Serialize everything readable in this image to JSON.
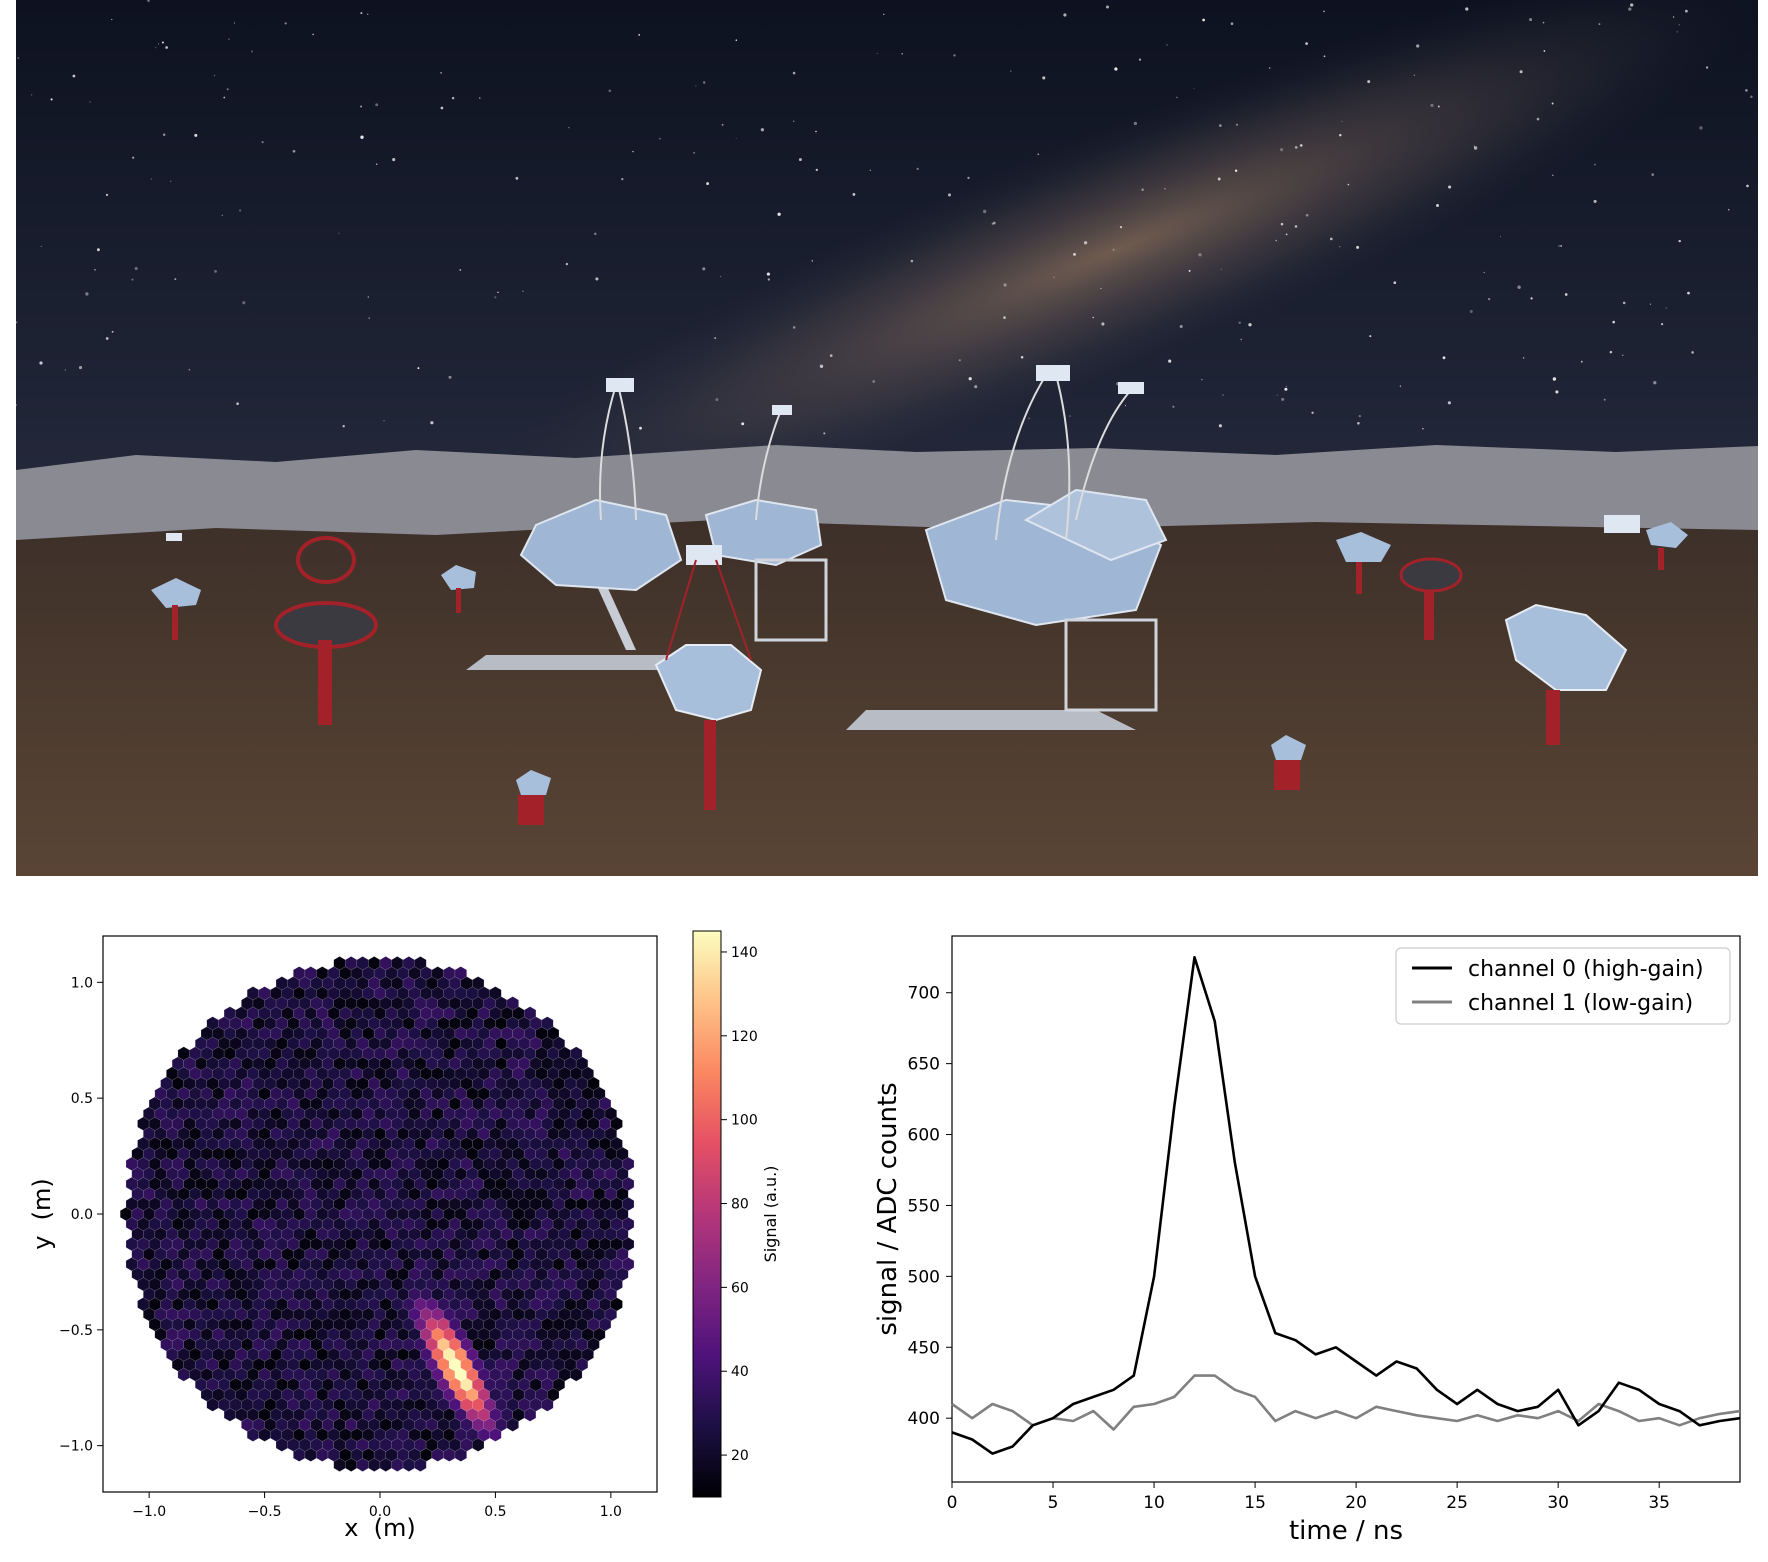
{
  "photo": {
    "description": "Night-sky rendering of a Cherenkov telescope array on a desert plateau under the Milky Way",
    "colors": {
      "sky_top": "#0d1220",
      "sky_mid": "#2a2c3a",
      "ground": "#4a3a30",
      "mirror": "#9fb6d4",
      "structure_red": "#a32128"
    }
  },
  "chart_data": [
    {
      "type": "heatmap",
      "title": "",
      "xlabel": "x  (m)",
      "ylabel": "y  (m)",
      "xlim": [
        -1.2,
        1.2
      ],
      "ylim": [
        -1.2,
        1.2
      ],
      "xticks": [
        -1.0,
        -0.5,
        0.0,
        0.5,
        1.0
      ],
      "xtick_labels": [
        "−1.0",
        "−0.5",
        "0.0",
        "0.5",
        "1.0"
      ],
      "yticks": [
        -1.0,
        -0.5,
        0.0,
        0.5,
        1.0
      ],
      "ytick_labels": [
        "−1.0",
        "−0.5",
        "0.0",
        "0.5",
        "1.0"
      ],
      "camera_radius": 1.1,
      "pixel_pitch": 0.05,
      "noise_range": [
        12,
        35
      ],
      "shower": {
        "center": [
          0.33,
          -0.66
        ],
        "peak_signal": 143,
        "major_sigma": 0.2,
        "minor_sigma": 0.055,
        "angle_deg": -62
      },
      "colorbar": {
        "label": "Signal (a.u.)",
        "range": [
          10,
          145
        ],
        "ticks": [
          20,
          40,
          60,
          80,
          100,
          120,
          140
        ],
        "colormap": "magma",
        "stops": [
          "#000004",
          "#1c1044",
          "#4f127b",
          "#812581",
          "#b5367a",
          "#e55064",
          "#fb8761",
          "#fec287",
          "#fcfdbf"
        ]
      },
      "grid": false
    },
    {
      "type": "line",
      "title": "",
      "xlabel": "time / ns",
      "ylabel": "signal / ADC counts",
      "xlim": [
        0,
        39
      ],
      "ylim": [
        355,
        740
      ],
      "xticks": [
        0,
        5,
        10,
        15,
        20,
        25,
        30,
        35
      ],
      "yticks": [
        400,
        450,
        500,
        550,
        600,
        650,
        700
      ],
      "grid": false,
      "legend_position": "top-right",
      "x": [
        0,
        1,
        2,
        3,
        4,
        5,
        6,
        7,
        8,
        9,
        10,
        11,
        12,
        13,
        14,
        15,
        16,
        17,
        18,
        19,
        20,
        21,
        22,
        23,
        24,
        25,
        26,
        27,
        28,
        29,
        30,
        31,
        32,
        33,
        34,
        35,
        36,
        37,
        38,
        39
      ],
      "series": [
        {
          "name": "channel 0 (high-gain)",
          "color": "#000000",
          "values": [
            390,
            385,
            375,
            380,
            395,
            400,
            410,
            415,
            420,
            430,
            500,
            620,
            725,
            680,
            580,
            500,
            460,
            455,
            445,
            450,
            440,
            430,
            440,
            435,
            420,
            410,
            420,
            410,
            405,
            408,
            420,
            395,
            405,
            425,
            420,
            410,
            405,
            395,
            398,
            400
          ]
        },
        {
          "name": "channel 1 (low-gain)",
          "color": "#808080",
          "values": [
            410,
            400,
            410,
            405,
            395,
            400,
            398,
            405,
            392,
            408,
            410,
            415,
            430,
            430,
            420,
            415,
            398,
            405,
            400,
            405,
            400,
            408,
            405,
            402,
            400,
            398,
            402,
            398,
            402,
            400,
            405,
            398,
            410,
            405,
            398,
            400,
            395,
            400,
            403,
            405
          ]
        }
      ]
    }
  ]
}
